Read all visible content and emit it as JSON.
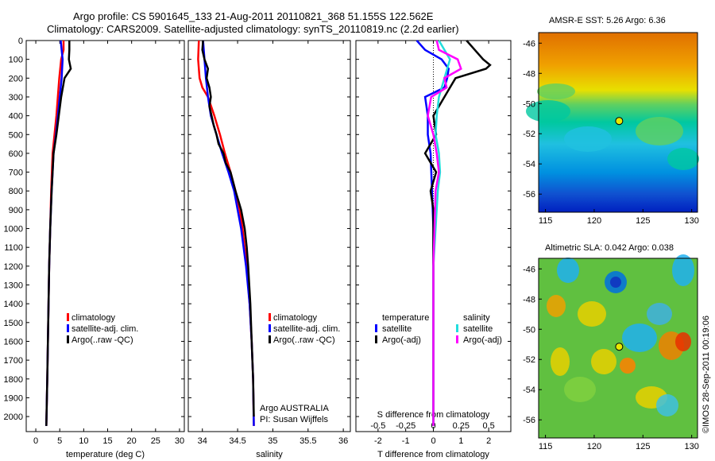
{
  "header": {
    "line1": "Argo profile: CS 5901645_133 21-Aug-2011 20110821_368 51.155S 122.562E",
    "line2": "Climatology: CARS2009. Satellite-adjusted climatology: synTS_20110819.nc (2.2d earlier)"
  },
  "watermark": "©IMOS 28-Sep-2011 00:19:06",
  "colors": {
    "climatology": "#ff0000",
    "satellite": "#0000ff",
    "argo": "#000000",
    "salinity_satellite": "#22dddd",
    "salinity_argo": "#ff00ff"
  },
  "chart_data": [
    {
      "id": "temperature",
      "type": "line",
      "xlabel": "temperature (deg C)",
      "xlim": [
        -2,
        31
      ],
      "xticks": [
        0,
        5,
        10,
        15,
        20,
        25,
        30
      ],
      "xticklabels": [
        "0",
        "5",
        "10",
        "15",
        "20",
        "25",
        "30"
      ],
      "ylim": [
        2080,
        0
      ],
      "yticks": [
        0,
        100,
        200,
        300,
        400,
        500,
        600,
        700,
        800,
        900,
        1000,
        1100,
        1200,
        1300,
        1400,
        1500,
        1600,
        1700,
        1800,
        1900,
        2000
      ],
      "legend": [
        "climatology",
        "satellite-adj. clim.",
        "Argo(..raw -QC)"
      ],
      "series": [
        {
          "name": "climatology",
          "depth": [
            0,
            50,
            100,
            200,
            300,
            400,
            500,
            600,
            800,
            1000,
            1200,
            1500,
            1800,
            2050
          ],
          "values": [
            5.8,
            5.8,
            5.3,
            4.9,
            4.6,
            4.3,
            3.9,
            3.5,
            3.2,
            3.0,
            2.8,
            2.6,
            2.4,
            2.2
          ]
        },
        {
          "name": "satellite-adj. clim.",
          "depth": [
            0,
            50,
            100,
            200,
            300,
            400,
            500,
            600,
            800,
            1000,
            1200,
            1500,
            1800,
            2050
          ],
          "values": [
            5.2,
            5.4,
            5.6,
            5.4,
            5.0,
            4.6,
            4.2,
            3.7,
            3.3,
            3.0,
            2.8,
            2.6,
            2.4,
            2.2
          ]
        },
        {
          "name": "Argo(..raw -QC)",
          "depth": [
            0,
            50,
            100,
            150,
            200,
            300,
            400,
            500,
            600,
            800,
            1000,
            1200,
            1500,
            1800,
            2050
          ],
          "values": [
            7.0,
            7.0,
            6.9,
            7.3,
            6.0,
            5.3,
            4.8,
            4.3,
            3.7,
            3.3,
            3.0,
            2.8,
            2.6,
            2.4,
            2.2
          ]
        }
      ]
    },
    {
      "id": "salinity",
      "type": "line",
      "xlabel": "salinity",
      "xlim": [
        33.8,
        36.1
      ],
      "xticks": [
        34,
        34.5,
        35,
        35.5,
        36
      ],
      "xticklabels": [
        "34",
        "34.5",
        "35",
        "35.5",
        "36"
      ],
      "ylim": [
        2080,
        0
      ],
      "legend": [
        "climatology",
        "satellite-adj. clim.",
        "Argo(..raw -QC)"
      ],
      "annotation": [
        "Argo AUSTRALIA",
        "PI: Susan Wijffels"
      ],
      "series": [
        {
          "name": "climatology",
          "depth": [
            0,
            100,
            200,
            250,
            300,
            400,
            500,
            600,
            700,
            800,
            900,
            1000,
            1200,
            1400,
            1600,
            1800,
            2050
          ],
          "values": [
            33.95,
            33.94,
            33.96,
            34.0,
            34.08,
            34.17,
            34.25,
            34.32,
            34.4,
            34.47,
            34.53,
            34.57,
            34.63,
            34.67,
            34.7,
            34.72,
            34.73
          ]
        },
        {
          "name": "satellite-adj. clim.",
          "depth": [
            0,
            100,
            200,
            300,
            400,
            500,
            600,
            700,
            800,
            900,
            1000,
            1200,
            1400,
            1600,
            1800,
            2050
          ],
          "values": [
            34.01,
            34.03,
            34.05,
            34.08,
            34.12,
            34.2,
            34.28,
            34.37,
            34.45,
            34.5,
            34.55,
            34.62,
            34.67,
            34.7,
            34.72,
            34.73
          ]
        },
        {
          "name": "Argo(..raw -QC)",
          "depth": [
            0,
            50,
            100,
            150,
            200,
            250,
            300,
            350,
            400,
            450,
            500,
            550,
            600,
            650,
            700,
            800,
            900,
            1000,
            1100,
            1200,
            1400,
            1600,
            1800,
            2000
          ],
          "values": [
            34.01,
            34.0,
            34.03,
            34.08,
            34.06,
            34.1,
            34.12,
            34.1,
            34.13,
            34.16,
            34.2,
            34.23,
            34.3,
            34.33,
            34.4,
            34.47,
            34.55,
            34.6,
            34.63,
            34.65,
            34.68,
            34.7,
            34.72,
            34.73
          ]
        }
      ]
    },
    {
      "id": "difference",
      "type": "line",
      "xlabel_top": "S difference from climatology",
      "xticklabels_top": [
        "-0.5",
        "-0.25",
        "0",
        "0.25",
        "0.5"
      ],
      "xlabel": "T difference from climatology",
      "xlim": [
        -2.8,
        2.8
      ],
      "xticks": [
        -2,
        -1,
        0,
        1,
        2
      ],
      "xticklabels": [
        "-2",
        "-1",
        "0",
        "1",
        "2"
      ],
      "ylim": [
        2080,
        0
      ],
      "legend_left_title": "temperature",
      "legend_right_title": "salinity",
      "legend_left": [
        "satellite",
        "Argo(-adj)"
      ],
      "legend_right": [
        "satellite",
        "Argo(-adj)"
      ],
      "series": [
        {
          "name": "T satellite",
          "depth": [
            0,
            50,
            100,
            150,
            200,
            250,
            300,
            400,
            500,
            600,
            800,
            1000,
            1500,
            2050
          ],
          "values": [
            -0.6,
            -0.3,
            0.3,
            0.55,
            0.5,
            0.4,
            -0.3,
            -0.2,
            -0.2,
            -0.1,
            -0.05,
            0,
            0,
            0
          ]
        },
        {
          "name": "T Argo(-adj)",
          "depth": [
            0,
            50,
            100,
            130,
            150,
            200,
            250,
            300,
            400,
            500,
            600,
            700,
            800,
            900,
            1000,
            1200,
            1500,
            2050
          ],
          "values": [
            1.2,
            1.5,
            1.8,
            2.05,
            1.9,
            0.8,
            0.6,
            0.4,
            0,
            0.1,
            -0.3,
            0.1,
            -0.1,
            0,
            0,
            0,
            0,
            0
          ]
        },
        {
          "name": "S satellite",
          "depth": [
            0,
            100,
            200,
            300,
            400,
            500,
            600,
            700,
            800,
            1000,
            1200,
            1500,
            2050
          ],
          "values": [
            0.05,
            0.15,
            0.1,
            0.05,
            0.03,
            0.02,
            0.05,
            0.06,
            0.04,
            0.02,
            0,
            0,
            0
          ]
        },
        {
          "name": "S Argo(-adj)",
          "depth": [
            0,
            50,
            100,
            150,
            200,
            250,
            300,
            400,
            500,
            600,
            700,
            800,
            1000,
            1200,
            1500,
            2050
          ],
          "values": [
            0.03,
            0.05,
            0.22,
            0.25,
            0.1,
            0.12,
            -0.02,
            -0.05,
            0,
            0.03,
            0.05,
            0.02,
            0.01,
            0,
            0,
            0
          ]
        }
      ]
    },
    {
      "id": "sst-map",
      "type": "heatmap",
      "title": "AMSR-E SST: 5.26 Argo: 6.36",
      "xticks": [
        115,
        120,
        125,
        130
      ],
      "yticks": [
        -46,
        -48,
        -50,
        -52,
        -54,
        -56
      ],
      "argo_position": [
        122.562,
        -51.155
      ]
    },
    {
      "id": "sla-map",
      "type": "heatmap",
      "title": "Altimetric SLA: 0.042 Argo: 0.038",
      "xticks": [
        115,
        120,
        125,
        130
      ],
      "yticks": [
        -46,
        -48,
        -50,
        -52,
        -54,
        -56
      ],
      "argo_position": [
        122.562,
        -51.155
      ]
    }
  ]
}
